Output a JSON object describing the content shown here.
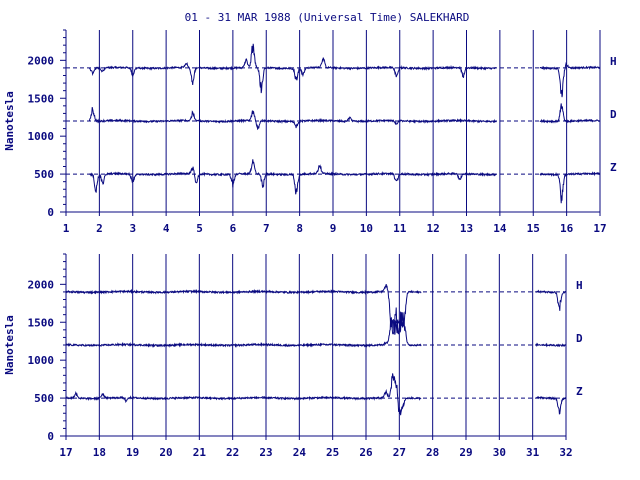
{
  "title": "01 - 31 MAR 1988 (Universal Time) SALEKHARD",
  "colors": {
    "plot": "#0a0a80",
    "background": "#ffffff"
  },
  "chart_data": [
    {
      "type": "line",
      "ylabel": "Nanotesla",
      "xlim": [
        1,
        17
      ],
      "ylim": [
        0,
        2400
      ],
      "x_ticks": [
        "1",
        "2",
        "3",
        "4",
        "5",
        "6",
        "7",
        "8",
        "9",
        "10",
        "11",
        "12",
        "13",
        "14",
        "15",
        "16",
        "17"
      ],
      "y_ticks": [
        "0",
        "500",
        "1000",
        "1500",
        "2000"
      ],
      "grid": "vertical lines at each day",
      "series": [
        {
          "name": "H",
          "baseline": 1900,
          "gaps": [
            [
              1.0,
              1.7
            ],
            [
              13.9,
              15.2
            ]
          ],
          "events": [
            {
              "x": 1.8,
              "dv": -80
            },
            {
              "x": 2.1,
              "dv": -60
            },
            {
              "x": 3.0,
              "dv": -100
            },
            {
              "x": 4.8,
              "dv": -250
            },
            {
              "x": 4.6,
              "dv": 60
            },
            {
              "x": 6.6,
              "dv": 350
            },
            {
              "x": 6.85,
              "dv": -350
            },
            {
              "x": 6.4,
              "dv": 120
            },
            {
              "x": 7.9,
              "dv": -200
            },
            {
              "x": 8.1,
              "dv": -100
            },
            {
              "x": 8.7,
              "dv": 150
            },
            {
              "x": 10.9,
              "dv": -150
            },
            {
              "x": 12.9,
              "dv": -130
            },
            {
              "x": 15.85,
              "dv": -450
            },
            {
              "x": 16.0,
              "dv": 60
            }
          ]
        },
        {
          "name": "D",
          "baseline": 1200,
          "gaps": [
            [
              1.0,
              1.7
            ],
            [
              13.9,
              15.2
            ]
          ],
          "events": [
            {
              "x": 1.8,
              "dv": 200
            },
            {
              "x": 4.8,
              "dv": 120
            },
            {
              "x": 6.6,
              "dv": 150
            },
            {
              "x": 6.75,
              "dv": -130
            },
            {
              "x": 7.9,
              "dv": -80
            },
            {
              "x": 9.5,
              "dv": 60
            },
            {
              "x": 10.9,
              "dv": -60
            },
            {
              "x": 15.85,
              "dv": 250
            }
          ]
        },
        {
          "name": "Z",
          "baseline": 500,
          "gaps": [
            [
              1.0,
              1.7
            ],
            [
              13.9,
              15.2
            ]
          ],
          "events": [
            {
              "x": 1.9,
              "dv": -250
            },
            {
              "x": 2.1,
              "dv": -150
            },
            {
              "x": 3.0,
              "dv": -120
            },
            {
              "x": 4.8,
              "dv": 100
            },
            {
              "x": 4.9,
              "dv": -150
            },
            {
              "x": 6.0,
              "dv": -180
            },
            {
              "x": 6.6,
              "dv": 200
            },
            {
              "x": 6.9,
              "dv": -200
            },
            {
              "x": 7.9,
              "dv": -300
            },
            {
              "x": 8.6,
              "dv": 150
            },
            {
              "x": 10.9,
              "dv": -150
            },
            {
              "x": 12.8,
              "dv": -100
            },
            {
              "x": 15.85,
              "dv": -400
            }
          ]
        }
      ]
    },
    {
      "type": "line",
      "ylabel": "Nanotesla",
      "xlim": [
        17,
        32
      ],
      "ylim": [
        0,
        2400
      ],
      "x_ticks": [
        "17",
        "18",
        "19",
        "20",
        "21",
        "22",
        "23",
        "24",
        "25",
        "26",
        "27",
        "28",
        "29",
        "30",
        "31",
        "32"
      ],
      "y_ticks": [
        "0",
        "500",
        "1000",
        "1500",
        "2000"
      ],
      "grid": "vertical lines at each day",
      "series": [
        {
          "name": "H",
          "baseline": 1900,
          "gaps": [
            [
              27.65,
              31.1
            ]
          ],
          "events": [
            {
              "x": 26.6,
              "dv": 100
            },
            {
              "x": 26.75,
              "dv": -450
            },
            {
              "x": 26.85,
              "dv": -600
            },
            {
              "x": 26.95,
              "dv": -500
            },
            {
              "x": 27.05,
              "dv": -550
            },
            {
              "x": 27.15,
              "dv": -400
            },
            {
              "x": 31.8,
              "dv": -250
            }
          ]
        },
        {
          "name": "D",
          "baseline": 1200,
          "gaps": [
            [
              27.65,
              31.1
            ]
          ],
          "events": [
            {
              "x": 26.6,
              "dv": 40
            },
            {
              "x": 26.75,
              "dv": 400
            },
            {
              "x": 26.9,
              "dv": 550
            },
            {
              "x": 27.05,
              "dv": 450
            },
            {
              "x": 27.15,
              "dv": 300
            }
          ]
        },
        {
          "name": "Z",
          "baseline": 500,
          "gaps": [
            [
              27.65,
              31.1
            ]
          ],
          "events": [
            {
              "x": 17.3,
              "dv": 80
            },
            {
              "x": 18.1,
              "dv": 80
            },
            {
              "x": 18.8,
              "dv": -60
            },
            {
              "x": 26.6,
              "dv": 100
            },
            {
              "x": 26.8,
              "dv": 350
            },
            {
              "x": 26.9,
              "dv": 250
            },
            {
              "x": 27.0,
              "dv": -280
            },
            {
              "x": 27.1,
              "dv": -150
            },
            {
              "x": 31.8,
              "dv": -200
            }
          ]
        }
      ]
    }
  ]
}
